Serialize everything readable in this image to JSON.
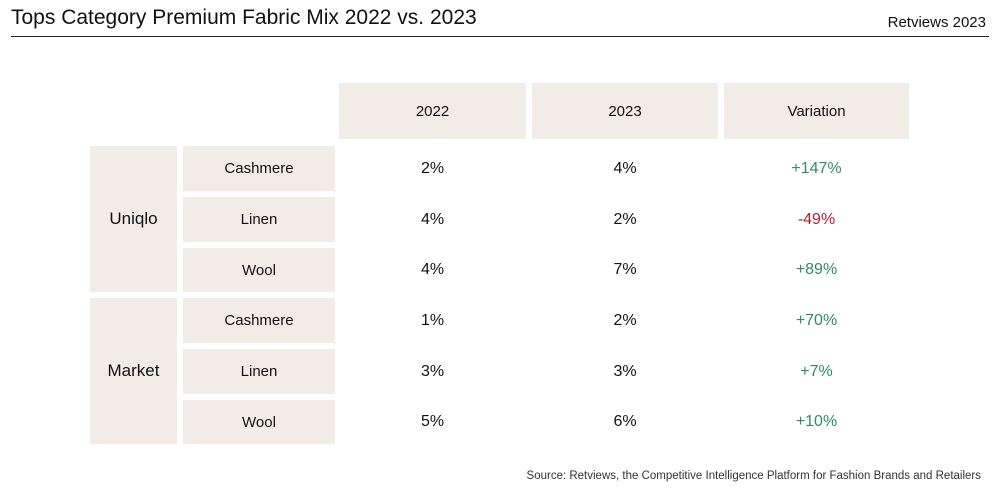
{
  "header": {
    "title": "Tops Category Premium Fabric Mix 2022 vs. 2023",
    "brand": "Retviews 2023"
  },
  "chart_data": {
    "type": "table",
    "title": "Tops Category Premium Fabric Mix 2022 vs. 2023",
    "columns": [
      "2022",
      "2023",
      "Variation"
    ],
    "groups": [
      {
        "name": "Uniqlo",
        "rows": [
          {
            "fabric": "Cashmere",
            "y2022": "2%",
            "y2023": "4%",
            "variation": "+147%",
            "trend": "positive"
          },
          {
            "fabric": "Linen",
            "y2022": "4%",
            "y2023": "2%",
            "variation": "-49%",
            "trend": "negative"
          },
          {
            "fabric": "Wool",
            "y2022": "4%",
            "y2023": "7%",
            "variation": "+89%",
            "trend": "positive"
          }
        ]
      },
      {
        "name": "Market",
        "rows": [
          {
            "fabric": "Cashmere",
            "y2022": "1%",
            "y2023": "2%",
            "variation": "+70%",
            "trend": "positive"
          },
          {
            "fabric": "Linen",
            "y2022": "3%",
            "y2023": "3%",
            "variation": "+7%",
            "trend": "positive"
          },
          {
            "fabric": "Wool",
            "y2022": "5%",
            "y2023": "6%",
            "variation": "+10%",
            "trend": "positive"
          }
        ]
      }
    ],
    "colors": {
      "header_bg": "#f1ece6",
      "positive": "#2e8b6f",
      "negative": "#c0182b"
    }
  },
  "footer": {
    "source": "Source: Retviews, the Competitive Intelligence Platform for Fashion Brands and Retailers"
  }
}
